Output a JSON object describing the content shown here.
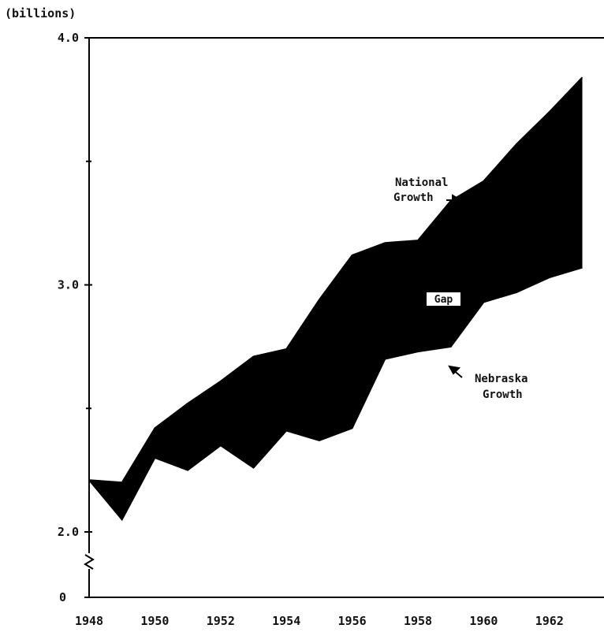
{
  "chart_data": {
    "type": "area",
    "unit_label": "(billions)",
    "x": [
      1948,
      1949,
      1950,
      1951,
      1952,
      1953,
      1954,
      1955,
      1956,
      1957,
      1958,
      1959,
      1960,
      1961,
      1962,
      1963
    ],
    "x_tick_labels": [
      "1948",
      "1950",
      "1952",
      "1954",
      "1956",
      "1958",
      "1960",
      "1962"
    ],
    "x_tick_values": [
      1948,
      1950,
      1952,
      1954,
      1956,
      1958,
      1960,
      1962
    ],
    "y_tick_labels": [
      "4.0",
      "3.0",
      "2.0",
      "0"
    ],
    "y_tick_values": [
      4.0,
      3.0,
      2.0,
      0
    ],
    "y_break": true,
    "ylim": [
      2.0,
      4.0
    ],
    "series": [
      {
        "name": "National Growth",
        "values": [
          2.21,
          2.2,
          2.42,
          2.52,
          2.61,
          2.71,
          2.74,
          2.94,
          3.12,
          3.17,
          3.18,
          3.34,
          3.42,
          3.57,
          3.7,
          3.84
        ]
      },
      {
        "name": "Nebraska Growth",
        "values": [
          2.21,
          2.05,
          2.3,
          2.25,
          2.35,
          2.26,
          2.41,
          2.37,
          2.42,
          2.7,
          2.73,
          2.75,
          2.93,
          2.97,
          3.03,
          3.07
        ]
      }
    ],
    "annotations": {
      "national": [
        "National",
        "Growth"
      ],
      "gap": "Gap",
      "nebraska": [
        "Nebraska",
        "Growth"
      ]
    },
    "grid": false,
    "legend": "none"
  }
}
